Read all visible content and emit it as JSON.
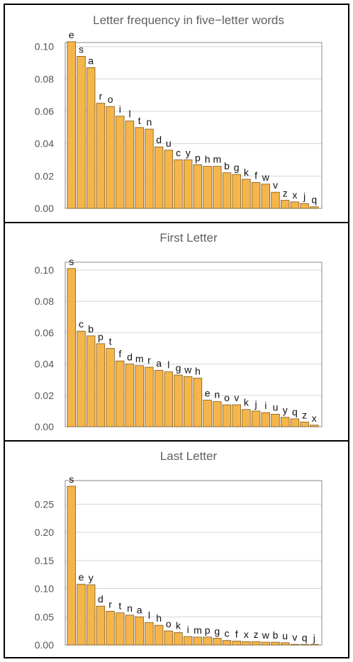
{
  "chart_data": [
    {
      "type": "bar",
      "title": "Letter frequency in five−letter words",
      "categories": [
        "e",
        "s",
        "a",
        "r",
        "o",
        "i",
        "l",
        "t",
        "n",
        "d",
        "u",
        "c",
        "y",
        "p",
        "h",
        "m",
        "b",
        "g",
        "k",
        "f",
        "w",
        "v",
        "z",
        "x",
        "j",
        "q"
      ],
      "values": [
        0.103,
        0.094,
        0.087,
        0.065,
        0.063,
        0.057,
        0.054,
        0.05,
        0.049,
        0.038,
        0.036,
        0.03,
        0.03,
        0.027,
        0.026,
        0.026,
        0.022,
        0.021,
        0.018,
        0.016,
        0.015,
        0.01,
        0.005,
        0.004,
        0.003,
        0.001
      ],
      "ylim": [
        0,
        0.1025
      ],
      "yticks": [
        "0.00",
        "0.02",
        "0.04",
        "0.06",
        "0.08",
        "0.10"
      ],
      "ytick_values": [
        0,
        0.02,
        0.04,
        0.06,
        0.08,
        0.1
      ],
      "grid": true
    },
    {
      "type": "bar",
      "title": "First Letter",
      "categories": [
        "s",
        "c",
        "b",
        "p",
        "t",
        "f",
        "d",
        "m",
        "r",
        "a",
        "l",
        "g",
        "w",
        "h",
        "e",
        "n",
        "o",
        "v",
        "k",
        "j",
        "i",
        "u",
        "y",
        "q",
        "z",
        "x"
      ],
      "values": [
        0.101,
        0.061,
        0.058,
        0.053,
        0.05,
        0.042,
        0.04,
        0.039,
        0.038,
        0.036,
        0.035,
        0.033,
        0.032,
        0.031,
        0.017,
        0.016,
        0.014,
        0.014,
        0.011,
        0.01,
        0.009,
        0.008,
        0.006,
        0.005,
        0.003,
        0.001
      ],
      "ylim": [
        0,
        0.105
      ],
      "yticks": [
        "0.00",
        "0.02",
        "0.04",
        "0.06",
        "0.08",
        "0.10"
      ],
      "ytick_values": [
        0,
        0.02,
        0.04,
        0.06,
        0.08,
        0.1
      ],
      "grid": true
    },
    {
      "type": "bar",
      "title": "Last Letter",
      "categories": [
        "s",
        "e",
        "y",
        "d",
        "r",
        "t",
        "n",
        "a",
        "l",
        "h",
        "o",
        "k",
        "i",
        "m",
        "p",
        "g",
        "c",
        "f",
        "x",
        "z",
        "w",
        "b",
        "u",
        "v",
        "q",
        "j"
      ],
      "values": [
        0.282,
        0.108,
        0.107,
        0.069,
        0.06,
        0.057,
        0.053,
        0.05,
        0.04,
        0.035,
        0.025,
        0.022,
        0.015,
        0.014,
        0.014,
        0.012,
        0.008,
        0.007,
        0.006,
        0.006,
        0.005,
        0.005,
        0.004,
        0.001,
        0.0005,
        0.0003
      ],
      "ylim": [
        0,
        0.292
      ],
      "yticks": [
        "0.00",
        "0.05",
        "0.10",
        "0.15",
        "0.20",
        "0.25"
      ],
      "ytick_values": [
        0,
        0.05,
        0.1,
        0.15,
        0.2,
        0.25
      ],
      "grid": true
    }
  ]
}
